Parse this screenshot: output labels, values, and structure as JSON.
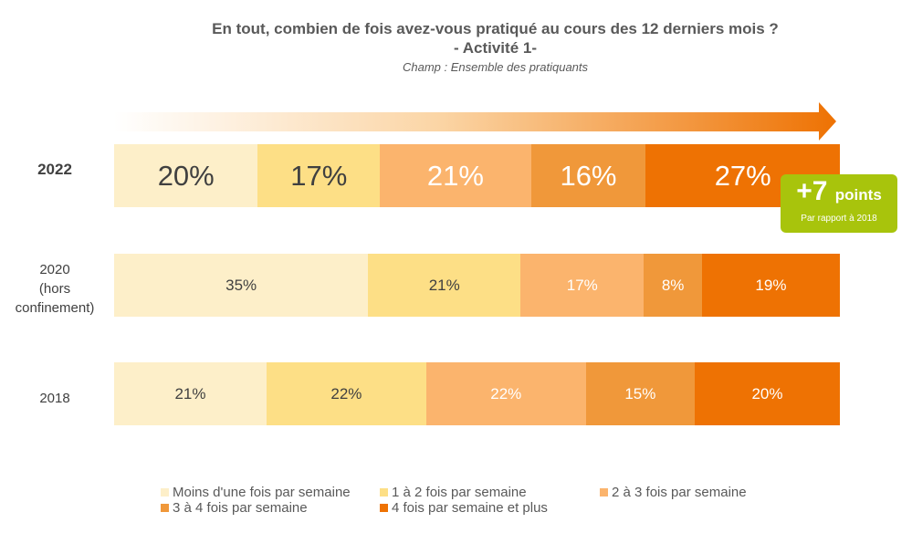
{
  "title_line1": "En tout, combien de fois avez-vous pratiqué au cours des 12 derniers mois ?",
  "title_line2": "- Activité 1-",
  "subtitle": "Champ : Ensemble des pratiquants",
  "badge": {
    "value": "+7",
    "unit": "points",
    "caption": "Par rapport à 2018"
  },
  "colors": [
    "#fdefc9",
    "#fddf86",
    "#fbb46d",
    "#f0983a",
    "#ee7203"
  ],
  "chart_data": {
    "type": "bar",
    "orientation": "horizontal-stacked-100",
    "categories": [
      "2022",
      "2020 (hors confinement)",
      "2018"
    ],
    "category_lines": [
      [
        "2022"
      ],
      [
        "2020",
        "(hors",
        "confinement)"
      ],
      [
        "2018"
      ]
    ],
    "series": [
      {
        "name": "Moins d'une fois par semaine",
        "values": [
          20,
          35,
          21
        ]
      },
      {
        "name": "1 à 2 fois par semaine",
        "values": [
          17,
          21,
          22
        ]
      },
      {
        "name": "2 à 3 fois par semaine",
        "values": [
          21,
          17,
          22
        ]
      },
      {
        "name": "3 à 4 fois par semaine",
        "values": [
          16,
          8,
          15
        ]
      },
      {
        "name": "4 fois par semaine et plus",
        "values": [
          27,
          19,
          20
        ]
      }
    ],
    "labels": [
      [
        "20%",
        "17%",
        "21%",
        "16%",
        "27%"
      ],
      [
        "35%",
        "21%",
        "17%",
        "8%",
        "19%"
      ],
      [
        "21%",
        "22%",
        "22%",
        "15%",
        "20%"
      ]
    ],
    "legend_position": "bottom"
  }
}
